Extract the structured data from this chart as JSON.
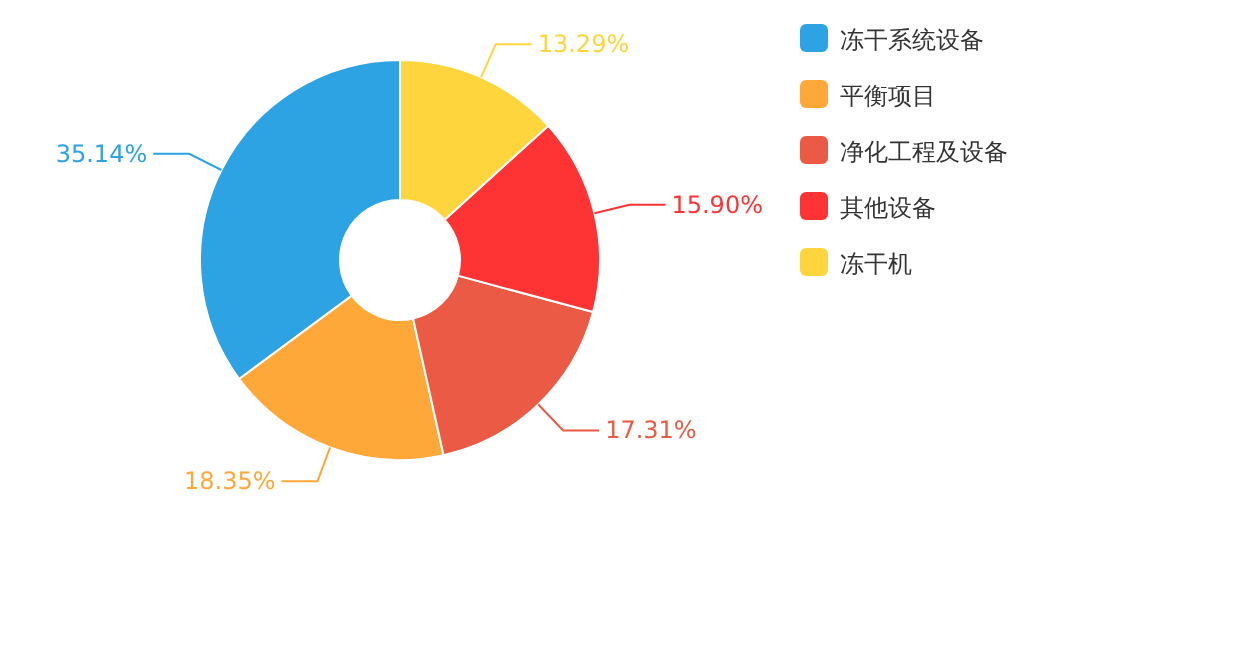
{
  "chart_data": {
    "type": "donut",
    "categories": [
      "冻干系统设备",
      "平衡项目",
      "净化工程及设备",
      "其他设备",
      "冻干机"
    ],
    "values": [
      35.14,
      18.35,
      17.31,
      15.9,
      13.29
    ],
    "colors": [
      "#2ea3e3",
      "#ffa83a",
      "#ea5a45",
      "#fe3334",
      "#ffd53d"
    ],
    "value_labels": [
      "35.14%",
      "18.35%",
      "17.31%",
      "15.90%",
      "13.29%"
    ],
    "legend": "right"
  }
}
